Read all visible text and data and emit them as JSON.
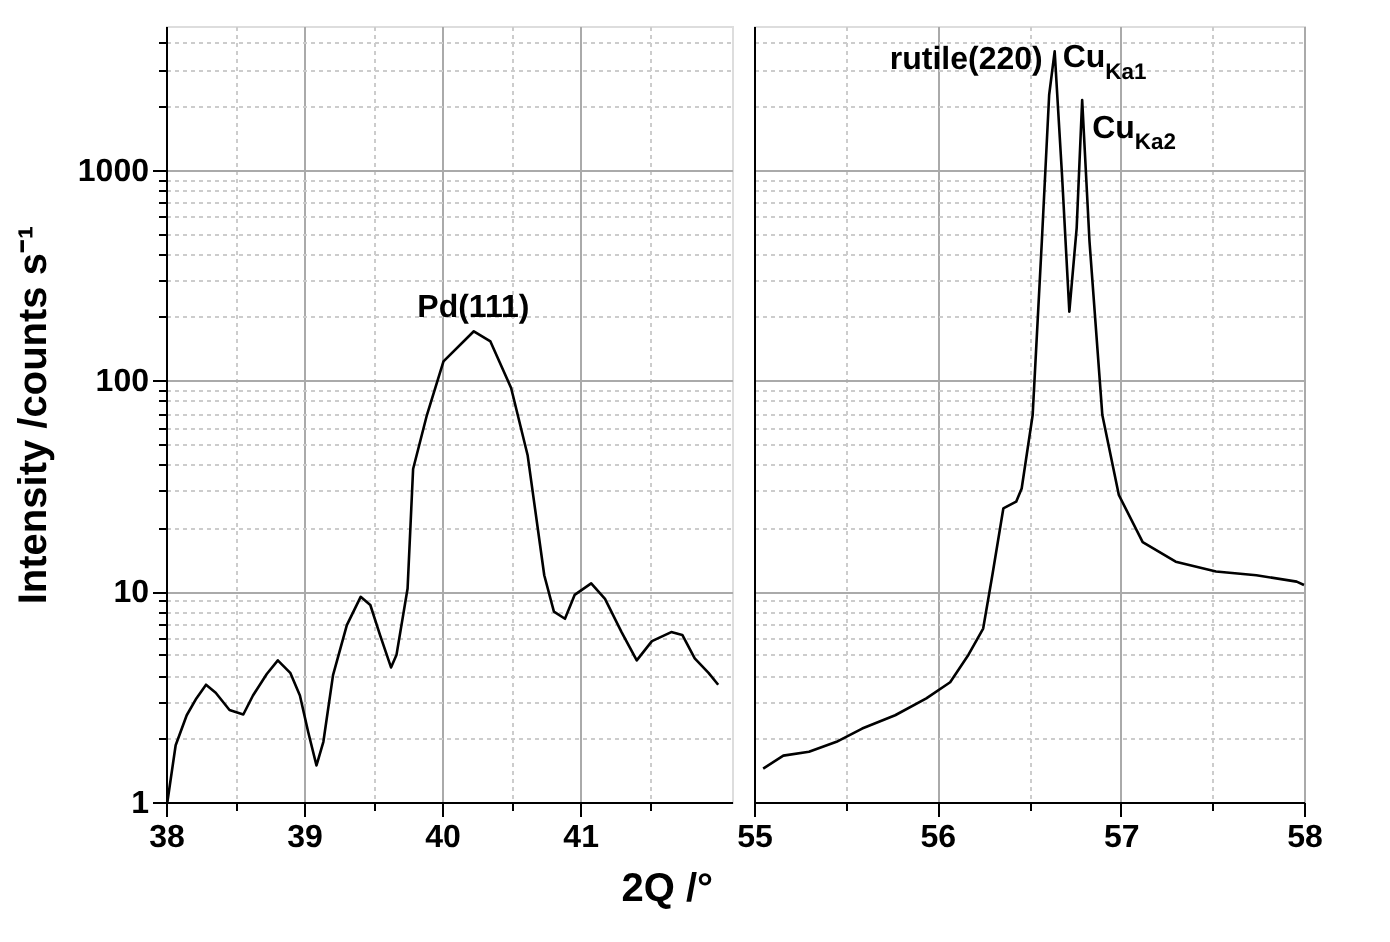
{
  "chart_data": [
    {
      "type": "line",
      "ylabel": "Intensity /counts s⁻¹",
      "xlabel": "2Q /°",
      "log": true,
      "grid": true,
      "line_style": "solid",
      "marker": "none",
      "xlim": [
        38,
        42.1
      ],
      "xticks": [
        38,
        {
          "value": 38.5,
          "label": null
        },
        39,
        {
          "value": 39.5,
          "label": null
        },
        40,
        {
          "value": 40.5,
          "label": null
        },
        41,
        {
          "value": 41.5,
          "label": null
        }
      ],
      "ylim": [
        1,
        4800
      ],
      "yticks": [
        1,
        {
          "value": 2,
          "label": null
        },
        {
          "value": 3,
          "label": null
        },
        {
          "value": 4,
          "label": null
        },
        {
          "value": 5,
          "label": null
        },
        {
          "value": 6,
          "label": null
        },
        {
          "value": 7,
          "label": null
        },
        {
          "value": 8,
          "label": null
        },
        {
          "value": 9,
          "label": null
        },
        10,
        {
          "value": 20,
          "label": null
        },
        {
          "value": 30,
          "label": null
        },
        {
          "value": 40,
          "label": null
        },
        {
          "value": 50,
          "label": null
        },
        {
          "value": 60,
          "label": null
        },
        {
          "value": 70,
          "label": null
        },
        {
          "value": 80,
          "label": null
        },
        {
          "value": 90,
          "label": null
        },
        100,
        {
          "value": 200,
          "label": null
        },
        {
          "value": 300,
          "label": null
        },
        {
          "value": 400,
          "label": null
        },
        {
          "value": 500,
          "label": null
        },
        {
          "value": 600,
          "label": null
        },
        {
          "value": 700,
          "label": null
        },
        {
          "value": 800,
          "label": null
        },
        {
          "value": 900,
          "label": null
        },
        1000,
        {
          "value": 2000,
          "label": null
        },
        {
          "value": 3000,
          "label": null
        },
        {
          "value": 4000,
          "label": null
        }
      ],
      "annotations": [
        {
          "text": "Pd(111)",
          "x": 40.23,
          "y": 171
        }
      ],
      "series": [
        {
          "color": "#000000",
          "x": [
            38.01,
            38.07,
            38.15,
            38.22,
            38.29,
            38.36,
            38.46,
            38.56,
            38.63,
            38.73,
            38.81,
            38.9,
            38.97,
            39.03,
            39.09,
            39.14,
            39.21,
            39.31,
            39.41,
            39.48,
            39.55,
            39.63,
            39.67,
            39.75,
            39.79,
            39.89,
            40.01,
            40.23,
            40.35,
            40.5,
            40.62,
            40.74,
            40.81,
            40.89,
            40.96,
            41.08,
            41.18,
            41.3,
            41.41,
            41.52,
            41.66,
            41.74,
            41.83,
            41.93,
            42.0
          ],
          "values": [
            1.0,
            1.86,
            2.58,
            3.1,
            3.6,
            3.3,
            2.73,
            2.6,
            3.2,
            4.05,
            4.7,
            4.1,
            3.2,
            2.15,
            1.49,
            1.93,
            4.0,
            6.9,
            9.4,
            8.6,
            6.2,
            4.35,
            5.0,
            10.3,
            38,
            68.5,
            123,
            171,
            153,
            92,
            44,
            11.9,
            8.0,
            7.4,
            9.6,
            10.9,
            9.2,
            6.4,
            4.7,
            5.8,
            6.4,
            6.2,
            4.8,
            4.1,
            3.6
          ]
        }
      ]
    },
    {
      "type": "line",
      "log": true,
      "grid": true,
      "tick_labels": "x",
      "line_style": "solid",
      "marker": "none",
      "xlim": [
        55,
        58
      ],
      "xticks": [
        55,
        {
          "value": 55.5,
          "label": null
        },
        56,
        {
          "value": 56.5,
          "label": null
        },
        57,
        {
          "value": 57.5,
          "label": null
        },
        58
      ],
      "ylim": [
        1,
        4800
      ],
      "yticks": [
        1,
        {
          "value": 2,
          "label": null
        },
        {
          "value": 3,
          "label": null
        },
        {
          "value": 4,
          "label": null
        },
        {
          "value": 5,
          "label": null
        },
        {
          "value": 6,
          "label": null
        },
        {
          "value": 7,
          "label": null
        },
        {
          "value": 8,
          "label": null
        },
        {
          "value": 9,
          "label": null
        },
        10,
        {
          "value": 20,
          "label": null
        },
        {
          "value": 30,
          "label": null
        },
        {
          "value": 40,
          "label": null
        },
        {
          "value": 50,
          "label": null
        },
        {
          "value": 60,
          "label": null
        },
        {
          "value": 70,
          "label": null
        },
        {
          "value": 80,
          "label": null
        },
        {
          "value": 90,
          "label": null
        },
        100,
        {
          "value": 200,
          "label": null
        },
        {
          "value": 300,
          "label": null
        },
        {
          "value": 400,
          "label": null
        },
        {
          "value": 500,
          "label": null
        },
        {
          "value": 600,
          "label": null
        },
        {
          "value": 700,
          "label": null
        },
        {
          "value": 800,
          "label": null
        },
        {
          "value": 900,
          "label": null
        },
        1000,
        {
          "value": 2000,
          "label": null
        },
        {
          "value": 3000,
          "label": null
        },
        {
          "value": 4000,
          "label": null
        }
      ],
      "annotations": [
        {
          "text": "rutile(220)",
          "x": 56.64,
          "y": 3640
        },
        {
          "text": "Cu$_{Ka1}$",
          "x": 56.64,
          "y": 3640
        },
        {
          "text": "Cu$_{Ka2}$",
          "x": 56.79,
          "y": 2140
        }
      ],
      "series": [
        {
          "color": "#000000",
          "x": [
            55.05,
            55.16,
            55.3,
            55.45,
            55.59,
            55.77,
            55.94,
            56.07,
            56.17,
            56.25,
            56.3,
            56.36,
            56.43,
            56.46,
            56.52,
            56.57,
            56.61,
            56.64,
            56.68,
            56.72,
            56.76,
            56.79,
            56.83,
            56.9,
            56.99,
            57.12,
            57.3,
            57.52,
            57.74,
            57.96,
            58.0
          ],
          "values": [
            1.44,
            1.66,
            1.73,
            1.93,
            2.23,
            2.58,
            3.1,
            3.7,
            5.0,
            6.65,
            11.9,
            24.7,
            26.6,
            30.7,
            68.5,
            456,
            2265,
            3640,
            945,
            212,
            528,
            2140,
            456,
            68.5,
            28.6,
            17.1,
            13.8,
            12.4,
            11.9,
            11.1,
            10.7
          ]
        }
      ]
    }
  ]
}
